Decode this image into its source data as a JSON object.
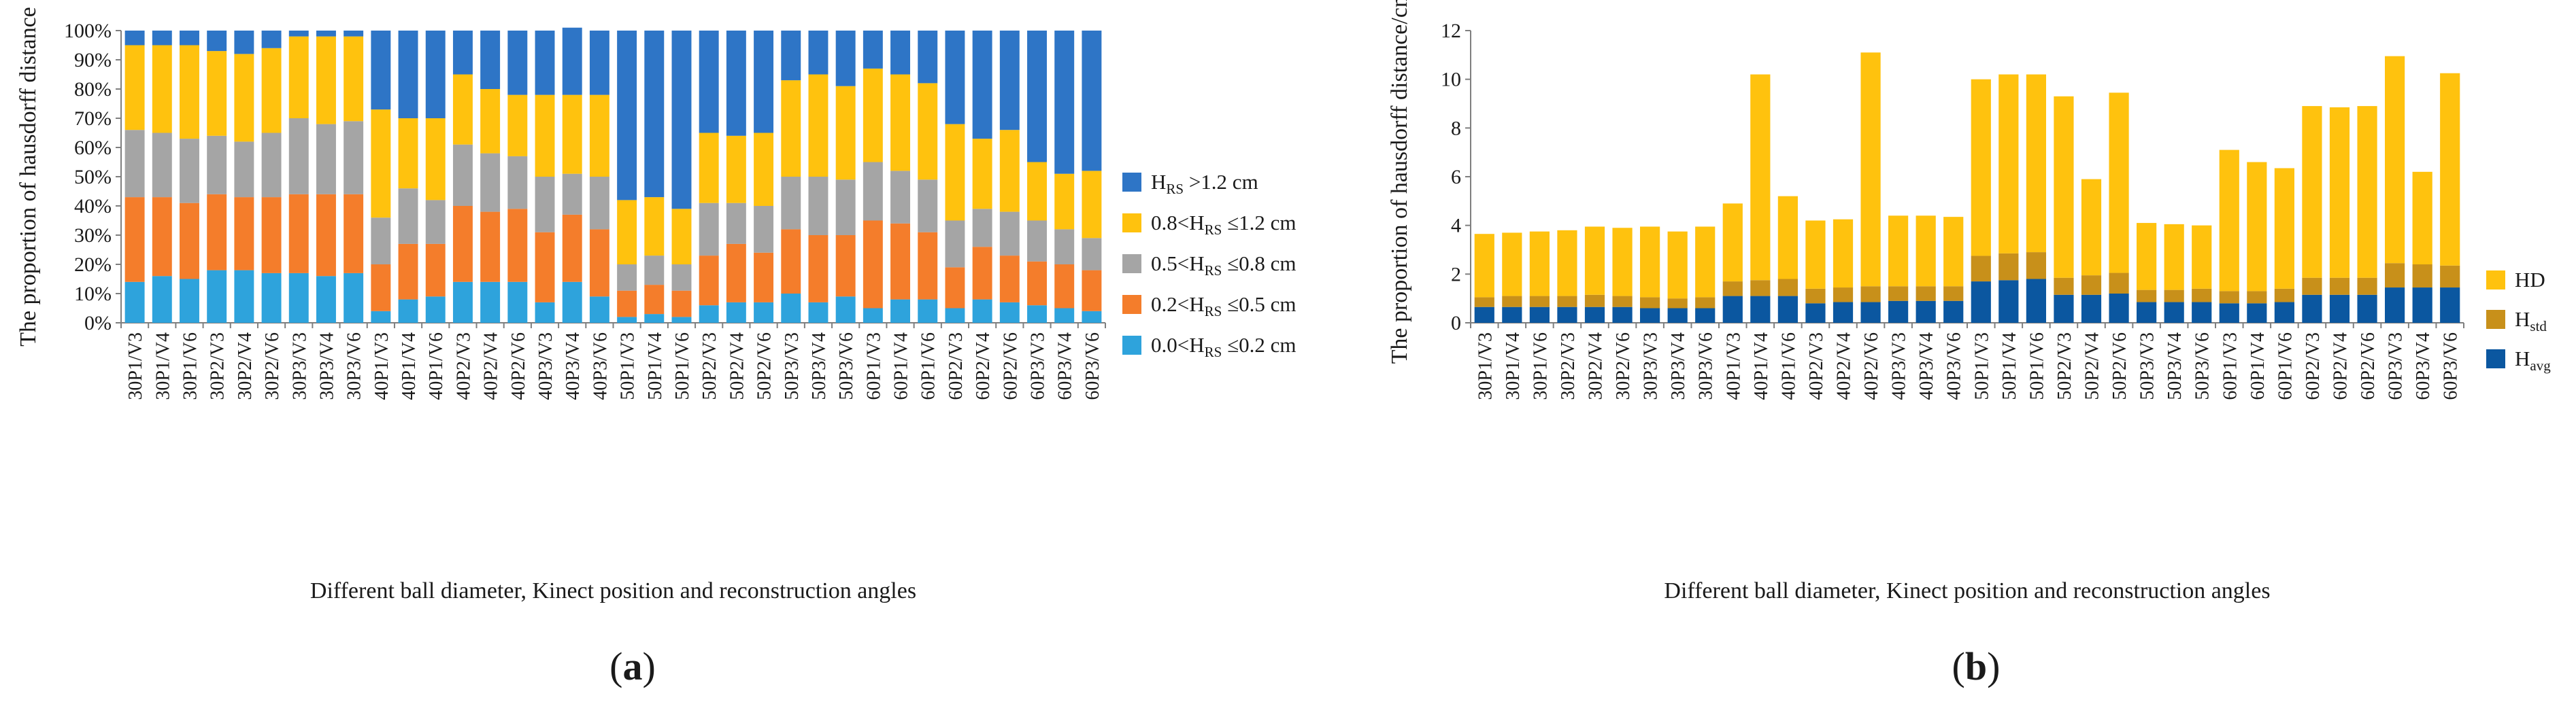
{
  "figure": {
    "panels": [
      {
        "label_open": "(",
        "label_letter": "a",
        "label_close": ")"
      },
      {
        "label_open": "(",
        "label_letter": "b",
        "label_close": ")"
      }
    ]
  },
  "chart_data": [
    {
      "type": "bar",
      "stacked": true,
      "xlabel": "Different ball diameter, Kinect position and reconstruction angles",
      "ylabel": "The proportion of hausdorff distance",
      "ylim": [
        0,
        100
      ],
      "y_ticks": [
        "0%",
        "10%",
        "20%",
        "30%",
        "40%",
        "50%",
        "60%",
        "70%",
        "80%",
        "90%",
        "100%"
      ],
      "categories": [
        "30P1/V3",
        "30P1/V4",
        "30P1/V6",
        "30P2/V3",
        "30P2/V4",
        "30P2/V6",
        "30P3/V3",
        "30P3/V4",
        "30P3/V6",
        "40P1/V3",
        "40P1/V4",
        "40P1/V6",
        "40P2/V3",
        "40P2/V4",
        "40P2/V6",
        "40P3/V3",
        "40P3/V4",
        "40P3/V6",
        "50P1/V3",
        "50P1/V4",
        "50P1/V6",
        "50P2/V3",
        "50P2/V4",
        "50P2/V6",
        "50P3/V3",
        "50P3/V4",
        "50P3/V6",
        "60P1/V3",
        "60P1/V4",
        "60P1/V6",
        "60P2/V3",
        "60P2/V4",
        "60P2/V6",
        "60P3/V3",
        "60P3/V4",
        "60P3/V6"
      ],
      "legend_position": "right",
      "series": [
        {
          "name": "0.0<HRS ≤0.2 cm",
          "legend_prefix": "0.0<H",
          "legend_sub": "RS",
          "legend_suffix": " ≤0.2 cm",
          "color": "#2ea3dc",
          "values": [
            14,
            16,
            15,
            18,
            18,
            17,
            17,
            16,
            17,
            4,
            8,
            9,
            14,
            14,
            14,
            7,
            14,
            9,
            2,
            3,
            2,
            6,
            7,
            7,
            10,
            7,
            9,
            5,
            8,
            8,
            5,
            8,
            7,
            6,
            5,
            4
          ]
        },
        {
          "name": "0.2<HRS ≤0.5 cm",
          "legend_prefix": "0.2<H",
          "legend_sub": "RS",
          "legend_suffix": " ≤0.5 cm",
          "color": "#f47d2b",
          "values": [
            29,
            27,
            26,
            26,
            25,
            26,
            27,
            28,
            27,
            16,
            19,
            18,
            26,
            24,
            25,
            24,
            23,
            23,
            9,
            10,
            9,
            17,
            20,
            17,
            22,
            23,
            21,
            30,
            26,
            23,
            14,
            18,
            16,
            15,
            15,
            14
          ]
        },
        {
          "name": "0.5<HRS ≤0.8 cm",
          "legend_prefix": "0.5<H",
          "legend_sub": "RS",
          "legend_suffix": " ≤0.8 cm",
          "color": "#a5a5a5",
          "values": [
            23,
            22,
            22,
            20,
            19,
            22,
            26,
            24,
            25,
            16,
            19,
            15,
            21,
            20,
            18,
            19,
            14,
            18,
            9,
            10,
            9,
            18,
            14,
            16,
            18,
            20,
            19,
            20,
            18,
            18,
            16,
            13,
            15,
            14,
            12,
            11
          ]
        },
        {
          "name": "0.8<HRS ≤1.2 cm",
          "legend_prefix": "0.8<H",
          "legend_sub": "RS",
          "legend_suffix": " ≤1.2 cm",
          "color": "#ffc20e",
          "values": [
            29,
            30,
            32,
            29,
            30,
            29,
            28,
            30,
            29,
            37,
            24,
            28,
            24,
            22,
            21,
            28,
            27,
            28,
            22,
            20,
            19,
            24,
            23,
            25,
            33,
            35,
            32,
            32,
            33,
            33,
            33,
            24,
            28,
            20,
            19,
            23
          ]
        },
        {
          "name": "HRS >1.2 cm",
          "legend_prefix": "H",
          "legend_sub": "RS",
          "legend_suffix": " >1.2 cm",
          "color": "#2e75c6",
          "values": [
            5,
            5,
            5,
            7,
            8,
            6,
            2,
            2,
            2,
            27,
            30,
            30,
            15,
            20,
            22,
            22,
            23,
            22,
            58,
            57,
            61,
            35,
            36,
            35,
            17,
            15,
            19,
            13,
            15,
            18,
            32,
            37,
            34,
            45,
            49,
            48
          ]
        }
      ]
    },
    {
      "type": "bar",
      "stacked": true,
      "xlabel": "Different ball diameter, Kinect position and reconstruction angles",
      "ylabel": "The proportion of hausdorff distance/cm",
      "ylim": [
        0,
        12
      ],
      "y_ticks": [
        "0",
        "2",
        "4",
        "6",
        "8",
        "10",
        "12"
      ],
      "categories": [
        "30P1/V3",
        "30P1/V4",
        "30P1/V6",
        "30P2/V3",
        "30P2/V4",
        "30P2/V6",
        "30P3/V3",
        "30P3/V4",
        "30P3/V6",
        "40P1/V3",
        "40P1/V4",
        "40P1/V6",
        "40P2/V3",
        "40P2/V4",
        "40P2/V6",
        "40P3/V3",
        "40P3/V4",
        "40P3/V6",
        "50P1/V3",
        "50P1/V4",
        "50P1/V6",
        "50P2/V3",
        "50P2/V4",
        "50P2/V6",
        "50P3/V3",
        "50P3/V4",
        "50P3/V6",
        "60P1/V3",
        "60P1/V4",
        "60P1/V6",
        "60P2/V3",
        "60P2/V4",
        "60P2/V6",
        "60P3/V3",
        "60P3/V4",
        "60P3/V6"
      ],
      "legend_position": "right",
      "series": [
        {
          "name": "Havg",
          "legend_prefix": "H",
          "legend_sub": "avg",
          "legend_suffix": "",
          "color": "#0b57a0",
          "values": [
            0.65,
            0.65,
            0.65,
            0.65,
            0.65,
            0.65,
            0.6,
            0.6,
            0.6,
            1.1,
            1.1,
            1.1,
            0.8,
            0.85,
            0.85,
            0.9,
            0.9,
            0.9,
            1.7,
            1.75,
            1.8,
            1.15,
            1.15,
            1.2,
            0.85,
            0.85,
            0.85,
            0.8,
            0.8,
            0.85,
            1.15,
            1.15,
            1.15,
            1.45,
            1.45,
            1.45
          ]
        },
        {
          "name": "Hstd",
          "legend_prefix": "H",
          "legend_sub": "std",
          "legend_suffix": "",
          "color": "#c8901a",
          "values": [
            0.4,
            0.45,
            0.45,
            0.45,
            0.5,
            0.45,
            0.45,
            0.4,
            0.45,
            0.6,
            0.65,
            0.7,
            0.6,
            0.6,
            0.65,
            0.6,
            0.6,
            0.6,
            1.05,
            1.1,
            1.1,
            0.7,
            0.8,
            0.85,
            0.5,
            0.5,
            0.55,
            0.5,
            0.5,
            0.55,
            0.7,
            0.7,
            0.7,
            1.0,
            0.95,
            0.9
          ]
        },
        {
          "name": "HD",
          "legend_prefix": "HD",
          "legend_sub": "",
          "legend_suffix": "",
          "color": "#ffc20e",
          "values": [
            2.6,
            2.6,
            2.65,
            2.7,
            2.8,
            2.8,
            2.9,
            2.75,
            2.9,
            3.2,
            8.45,
            3.4,
            2.8,
            2.8,
            9.6,
            2.9,
            2.9,
            2.85,
            7.25,
            7.35,
            7.3,
            7.45,
            3.95,
            7.4,
            2.75,
            2.7,
            2.6,
            5.8,
            5.3,
            4.95,
            7.05,
            7.0,
            7.05,
            8.5,
            3.8,
            7.9
          ]
        }
      ]
    }
  ]
}
